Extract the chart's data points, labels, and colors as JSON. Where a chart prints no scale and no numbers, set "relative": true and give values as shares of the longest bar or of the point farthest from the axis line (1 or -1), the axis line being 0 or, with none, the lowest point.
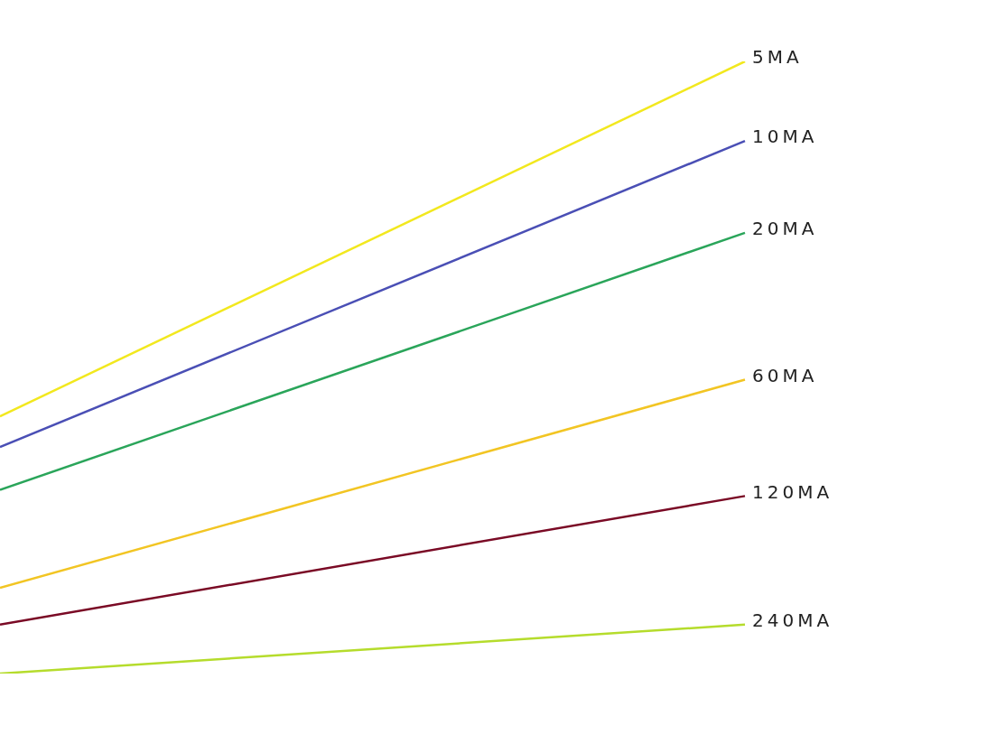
{
  "chart_data": {
    "type": "line",
    "relative": true,
    "categories": [
      null,
      null
    ],
    "legend": false,
    "tick_labels": false,
    "marker": "none",
    "series": [
      {
        "name": "5MA",
        "color": "#f2e81e",
        "values": [
          0.42,
          1
        ]
      },
      {
        "name": "10MA",
        "color": "#4a4fb5",
        "values": [
          0.37,
          0.87
        ]
      },
      {
        "name": "20MA",
        "color": "#2aa55a",
        "values": [
          0.3,
          0.72
        ]
      },
      {
        "name": "60MA",
        "color": "#f2c523",
        "values": [
          0.14,
          0.48
        ]
      },
      {
        "name": "120MA",
        "color": "#7a0a25",
        "values": [
          0.08,
          0.29
        ]
      },
      {
        "name": "240MA",
        "color": "#b5dc2c",
        "values": [
          0,
          0.08
        ]
      }
    ]
  }
}
